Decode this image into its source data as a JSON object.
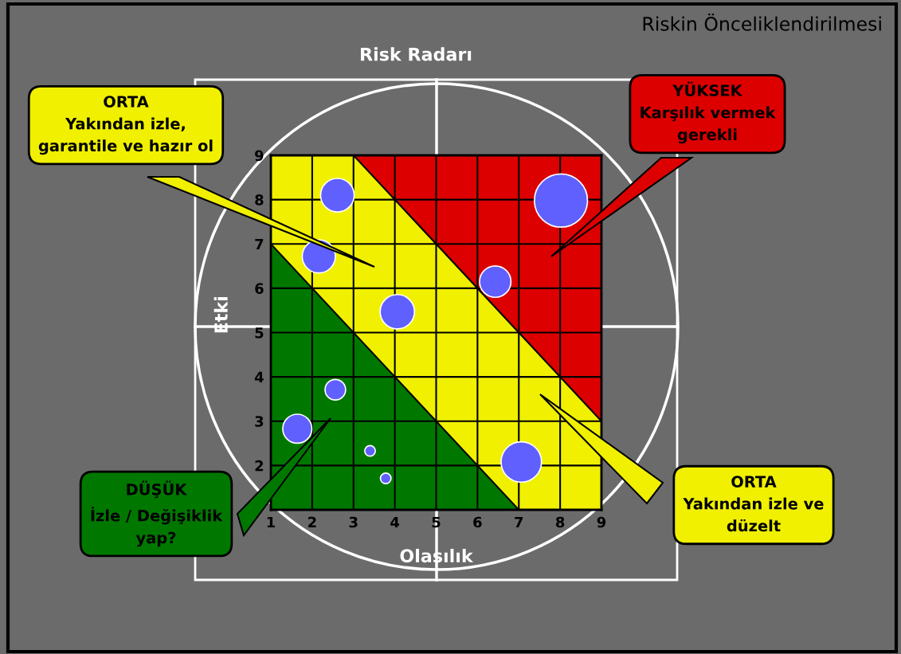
{
  "chart_data": {
    "type": "bubble",
    "title": "Riskin Önceliklendirilmesi",
    "subtitle": "Risk Radarı",
    "xlabel": "Olasılık",
    "ylabel": "Etki",
    "x": [
      2.61,
      2.16,
      4.06,
      8.02,
      6.43,
      2.56,
      1.64,
      3.4,
      3.78,
      7.06
    ],
    "values": [
      8.1,
      6.72,
      5.47,
      7.98,
      6.15,
      3.71,
      2.83,
      2.33,
      1.71,
      2.08
    ],
    "sizes": [
      0.4,
      0.39,
      0.42,
      1,
      0.35,
      0.15,
      0.3,
      0.04,
      0.04,
      0.58
    ],
    "color": "#6060ff",
    "xlim": [
      1,
      9
    ],
    "ylim": [
      1,
      9
    ],
    "xticks": [
      1,
      2,
      3,
      4,
      5,
      6,
      7,
      8,
      9
    ],
    "yticks": [
      {
        "value": 1,
        "label": null
      },
      2,
      3,
      4,
      5,
      6,
      7,
      8,
      9
    ],
    "grid": true,
    "annotations": [
      "ORTA\nYakından izle,\ngarantile ve hazır ol",
      "YÜKSEK\nKarşılık vermek\ngerekli",
      "DÜŞÜK\nİzle / Değişiklik\nyap?",
      "ORTA\nYakından izle ve\ndüzelt"
    ]
  }
}
